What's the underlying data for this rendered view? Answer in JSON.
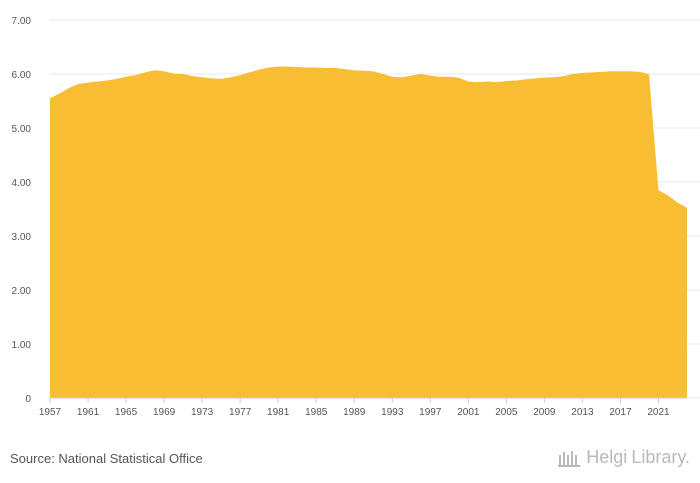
{
  "chart_data": {
    "type": "area",
    "x": [
      1957,
      1958,
      1959,
      1960,
      1961,
      1962,
      1963,
      1964,
      1965,
      1966,
      1967,
      1968,
      1969,
      1970,
      1971,
      1972,
      1973,
      1974,
      1975,
      1976,
      1977,
      1978,
      1979,
      1980,
      1981,
      1982,
      1983,
      1984,
      1985,
      1986,
      1987,
      1988,
      1989,
      1990,
      1991,
      1992,
      1993,
      1994,
      1995,
      1996,
      1997,
      1998,
      1999,
      2000,
      2001,
      2002,
      2003,
      2004,
      2005,
      2006,
      2007,
      2008,
      2009,
      2010,
      2011,
      2012,
      2013,
      2014,
      2015,
      2016,
      2017,
      2018,
      2019,
      2020,
      2021,
      2022,
      2023,
      2024
    ],
    "series": [
      {
        "values": [
          5.55,
          5.64,
          5.74,
          5.82,
          5.84,
          5.86,
          5.88,
          5.91,
          5.95,
          5.98,
          6.03,
          6.07,
          6.05,
          6.01,
          6.0,
          5.96,
          5.94,
          5.92,
          5.91,
          5.94,
          5.98,
          6.03,
          6.08,
          6.12,
          6.14,
          6.14,
          6.13,
          6.12,
          6.12,
          6.11,
          6.11,
          6.09,
          6.07,
          6.06,
          6.05,
          6.0,
          5.95,
          5.94,
          5.97,
          6.0,
          5.97,
          5.95,
          5.95,
          5.93,
          5.86,
          5.85,
          5.86,
          5.85,
          5.87,
          5.88,
          5.9,
          5.92,
          5.93,
          5.94,
          5.96,
          6.0,
          6.02,
          6.03,
          6.04,
          6.05,
          6.05,
          6.05,
          6.04,
          6.0,
          3.85,
          3.75,
          3.62,
          3.52
        ],
        "color": "#f8be33"
      }
    ],
    "y_ticks": [
      "0",
      "1.00",
      "2.00",
      "3.00",
      "4.00",
      "5.00",
      "6.00",
      "7.00"
    ],
    "x_ticks": [
      "1957",
      "1961",
      "1965",
      "1969",
      "1973",
      "1977",
      "1981",
      "1985",
      "1989",
      "1993",
      "1997",
      "2001",
      "2005",
      "2009",
      "2013",
      "2017",
      "2021"
    ],
    "ylim": [
      0,
      7
    ],
    "xlim": [
      1957,
      2024
    ],
    "grid": true,
    "legend": "none"
  },
  "footer": {
    "source": "Source: National Statistical Office",
    "logo_helgi": "Helgi",
    "logo_library": "Library."
  },
  "colors": {
    "area": "#f8be33",
    "grid": "#e8e8e8",
    "axis_text": "#555555"
  }
}
